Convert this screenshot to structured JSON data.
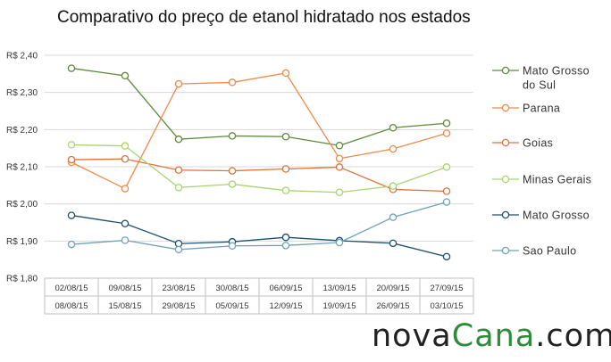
{
  "chart_data": {
    "type": "line",
    "title": "Comparativo do preço de etanol hidratado nos estados",
    "categories": [
      [
        "02/08/15",
        "08/08/15"
      ],
      [
        "09/08/15",
        "15/08/15"
      ],
      [
        "23/08/15",
        "29/08/15"
      ],
      [
        "30/08/15",
        "05/09/15"
      ],
      [
        "06/09/15",
        "12/09/15"
      ],
      [
        "13/09/15",
        "19/09/15"
      ],
      [
        "20/09/15",
        "26/09/15"
      ],
      [
        "27/09/15",
        "03/10/15"
      ]
    ],
    "ylim": [
      1.8,
      2.4
    ],
    "yticks": [
      "R$ 2,40",
      "R$ 2,30",
      "R$ 2,20",
      "R$ 2,10",
      "R$ 2,00",
      "R$ 1,90",
      "R$ 1,80"
    ],
    "ytick_values": [
      2.4,
      2.3,
      2.2,
      2.1,
      2.0,
      1.9,
      1.8
    ],
    "grid": true,
    "legend_position": "right",
    "series": [
      {
        "name": "Mato Grosso do Sul",
        "color": "#5e8a3a",
        "values": [
          2.365,
          2.345,
          2.174,
          2.183,
          2.181,
          2.157,
          2.205,
          2.217
        ]
      },
      {
        "name": "Parana",
        "color": "#ed8a4a",
        "values": [
          2.112,
          2.041,
          2.323,
          2.327,
          2.352,
          2.122,
          2.148,
          2.19
        ]
      },
      {
        "name": "Goias",
        "color": "#e0733a",
        "values": [
          2.119,
          2.121,
          2.091,
          2.089,
          2.094,
          2.099,
          2.039,
          2.034
        ]
      },
      {
        "name": "Minas Gerais",
        "color": "#a8d470",
        "values": [
          2.159,
          2.156,
          2.044,
          2.053,
          2.036,
          2.031,
          2.048,
          2.099
        ]
      },
      {
        "name": "Mato Grosso",
        "color": "#1e4f6e",
        "values": [
          1.969,
          1.947,
          1.893,
          1.898,
          1.91,
          1.901,
          1.894,
          1.858
        ]
      },
      {
        "name": "Sao Paulo",
        "color": "#6fa2b8",
        "values": [
          1.891,
          1.902,
          1.877,
          1.887,
          1.888,
          1.896,
          1.964,
          2.005
        ]
      }
    ]
  },
  "legend": {
    "labels": [
      [
        "Mato Grosso",
        "do Sul"
      ],
      [
        "Parana"
      ],
      [
        "Goias"
      ],
      [
        "Minas Gerais"
      ],
      [
        "Mato Grosso"
      ],
      [
        "Sao Paulo"
      ]
    ]
  },
  "brand": {
    "part1": "nova",
    "part2": "Cana",
    "part3": ".com"
  },
  "colors": {
    "grid": "#d9d9d9",
    "axis": "#bfbfbf",
    "brand_green": "#2e8b3a"
  }
}
